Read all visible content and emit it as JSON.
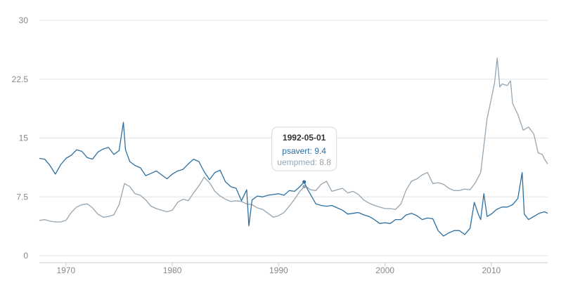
{
  "chart_data": {
    "type": "line",
    "title": "",
    "xlabel": "",
    "ylabel": "",
    "xlim": [
      1967.5,
      2015.3
    ],
    "ylim": [
      0,
      30
    ],
    "x_ticks": [
      {
        "value": 1970,
        "label": "1970"
      },
      {
        "value": 1980,
        "label": "1980"
      },
      {
        "value": 1990,
        "label": "1990"
      },
      {
        "value": 2000,
        "label": "2000"
      },
      {
        "value": 2010,
        "label": "2010"
      }
    ],
    "y_ticks": [
      {
        "value": 0,
        "label": "0"
      },
      {
        "value": 7.5,
        "label": "7.5"
      },
      {
        "value": 15,
        "label": "15"
      },
      {
        "value": 22.5,
        "label": "22.5"
      },
      {
        "value": 30,
        "label": "30"
      }
    ],
    "grid": true,
    "series": [
      {
        "name": "uempmed",
        "color": "#95a5b2",
        "points": [
          [
            1967.5,
            4.5
          ],
          [
            1968.0,
            4.6
          ],
          [
            1968.5,
            4.4
          ],
          [
            1969.0,
            4.3
          ],
          [
            1969.5,
            4.3
          ],
          [
            1970.0,
            4.5
          ],
          [
            1970.5,
            5.5
          ],
          [
            1971.0,
            6.2
          ],
          [
            1971.5,
            6.5
          ],
          [
            1972.0,
            6.6
          ],
          [
            1972.5,
            6.1
          ],
          [
            1973.0,
            5.3
          ],
          [
            1973.5,
            4.9
          ],
          [
            1974.0,
            5.0
          ],
          [
            1974.5,
            5.2
          ],
          [
            1975.0,
            6.5
          ],
          [
            1975.5,
            9.2
          ],
          [
            1976.0,
            8.8
          ],
          [
            1976.5,
            7.9
          ],
          [
            1977.0,
            7.7
          ],
          [
            1977.5,
            7.1
          ],
          [
            1978.0,
            6.3
          ],
          [
            1978.5,
            6.0
          ],
          [
            1979.0,
            5.8
          ],
          [
            1979.5,
            5.6
          ],
          [
            1980.0,
            5.8
          ],
          [
            1980.5,
            6.8
          ],
          [
            1981.0,
            7.2
          ],
          [
            1981.5,
            7.0
          ],
          [
            1982.0,
            8.0
          ],
          [
            1982.5,
            8.9
          ],
          [
            1983.0,
            10.0
          ],
          [
            1983.5,
            9.3
          ],
          [
            1984.0,
            8.2
          ],
          [
            1984.5,
            7.6
          ],
          [
            1985.0,
            7.2
          ],
          [
            1985.5,
            6.9
          ],
          [
            1986.0,
            7.0
          ],
          [
            1986.5,
            6.9
          ],
          [
            1987.0,
            6.6
          ],
          [
            1987.5,
            6.5
          ],
          [
            1988.0,
            6.1
          ],
          [
            1988.5,
            5.9
          ],
          [
            1989.0,
            5.4
          ],
          [
            1989.5,
            4.9
          ],
          [
            1990.0,
            5.1
          ],
          [
            1990.5,
            5.5
          ],
          [
            1991.0,
            6.3
          ],
          [
            1991.5,
            7.2
          ],
          [
            1992.0,
            8.2
          ],
          [
            1992.4,
            8.8
          ],
          [
            1992.5,
            8.9
          ],
          [
            1993.0,
            8.4
          ],
          [
            1993.5,
            8.3
          ],
          [
            1994.0,
            9.1
          ],
          [
            1994.5,
            9.5
          ],
          [
            1995.0,
            8.2
          ],
          [
            1995.5,
            8.4
          ],
          [
            1996.0,
            8.6
          ],
          [
            1996.5,
            8.0
          ],
          [
            1997.0,
            8.2
          ],
          [
            1997.5,
            7.8
          ],
          [
            1998.0,
            7.1
          ],
          [
            1998.5,
            6.7
          ],
          [
            1999.0,
            6.4
          ],
          [
            1999.5,
            6.2
          ],
          [
            2000.0,
            6.0
          ],
          [
            2000.5,
            6.0
          ],
          [
            2001.0,
            5.9
          ],
          [
            2001.5,
            6.6
          ],
          [
            2002.0,
            8.4
          ],
          [
            2002.5,
            9.5
          ],
          [
            2003.0,
            9.8
          ],
          [
            2003.5,
            10.3
          ],
          [
            2004.0,
            10.6
          ],
          [
            2004.5,
            9.2
          ],
          [
            2005.0,
            9.3
          ],
          [
            2005.5,
            9.1
          ],
          [
            2006.0,
            8.6
          ],
          [
            2006.5,
            8.3
          ],
          [
            2007.0,
            8.3
          ],
          [
            2007.5,
            8.5
          ],
          [
            2008.0,
            8.4
          ],
          [
            2008.5,
            9.3
          ],
          [
            2009.0,
            10.6
          ],
          [
            2009.3,
            14.0
          ],
          [
            2009.6,
            17.5
          ],
          [
            2010.0,
            20.0
          ],
          [
            2010.3,
            22.0
          ],
          [
            2010.55,
            25.2
          ],
          [
            2010.8,
            21.5
          ],
          [
            2011.0,
            21.9
          ],
          [
            2011.5,
            21.7
          ],
          [
            2011.8,
            22.3
          ],
          [
            2012.0,
            19.4
          ],
          [
            2012.5,
            18.0
          ],
          [
            2013.0,
            16.0
          ],
          [
            2013.5,
            16.4
          ],
          [
            2014.0,
            15.5
          ],
          [
            2014.4,
            13.1
          ],
          [
            2014.8,
            12.9
          ],
          [
            2015.0,
            12.3
          ],
          [
            2015.3,
            11.7
          ]
        ]
      },
      {
        "name": "psavert",
        "color": "#2c6fa0",
        "points": [
          [
            1967.5,
            12.4
          ],
          [
            1968.0,
            12.3
          ],
          [
            1968.5,
            11.5
          ],
          [
            1969.0,
            10.4
          ],
          [
            1969.5,
            11.6
          ],
          [
            1970.0,
            12.4
          ],
          [
            1970.5,
            12.8
          ],
          [
            1971.0,
            13.5
          ],
          [
            1971.5,
            13.3
          ],
          [
            1972.0,
            12.5
          ],
          [
            1972.5,
            12.3
          ],
          [
            1973.0,
            13.2
          ],
          [
            1973.5,
            13.6
          ],
          [
            1974.0,
            13.8
          ],
          [
            1974.5,
            12.9
          ],
          [
            1975.0,
            13.4
          ],
          [
            1975.4,
            17.0
          ],
          [
            1975.6,
            13.5
          ],
          [
            1976.0,
            12.0
          ],
          [
            1976.5,
            11.5
          ],
          [
            1977.0,
            11.2
          ],
          [
            1977.5,
            10.2
          ],
          [
            1978.0,
            10.5
          ],
          [
            1978.5,
            10.8
          ],
          [
            1979.0,
            10.3
          ],
          [
            1979.5,
            9.8
          ],
          [
            1980.0,
            10.4
          ],
          [
            1980.5,
            10.8
          ],
          [
            1981.0,
            11.0
          ],
          [
            1981.5,
            11.7
          ],
          [
            1982.0,
            12.3
          ],
          [
            1982.5,
            12.0
          ],
          [
            1983.0,
            10.7
          ],
          [
            1983.5,
            9.7
          ],
          [
            1984.0,
            10.6
          ],
          [
            1984.5,
            10.9
          ],
          [
            1985.0,
            9.4
          ],
          [
            1985.5,
            8.8
          ],
          [
            1986.0,
            8.6
          ],
          [
            1986.5,
            7.0
          ],
          [
            1987.0,
            8.4
          ],
          [
            1987.2,
            3.8
          ],
          [
            1987.5,
            7.1
          ],
          [
            1988.0,
            7.6
          ],
          [
            1988.5,
            7.5
          ],
          [
            1989.0,
            7.7
          ],
          [
            1989.5,
            7.8
          ],
          [
            1990.0,
            7.9
          ],
          [
            1990.5,
            7.7
          ],
          [
            1991.0,
            8.3
          ],
          [
            1991.5,
            8.2
          ],
          [
            1992.0,
            8.8
          ],
          [
            1992.4,
            9.4
          ],
          [
            1992.7,
            8.5
          ],
          [
            1993.0,
            7.8
          ],
          [
            1993.5,
            6.6
          ],
          [
            1994.0,
            6.4
          ],
          [
            1994.5,
            6.3
          ],
          [
            1995.0,
            6.4
          ],
          [
            1995.5,
            6.1
          ],
          [
            1996.0,
            5.8
          ],
          [
            1996.5,
            5.3
          ],
          [
            1997.0,
            5.4
          ],
          [
            1997.5,
            5.5
          ],
          [
            1998.0,
            5.2
          ],
          [
            1998.5,
            5.0
          ],
          [
            1999.0,
            4.6
          ],
          [
            1999.5,
            4.1
          ],
          [
            2000.0,
            4.2
          ],
          [
            2000.5,
            4.1
          ],
          [
            2001.0,
            4.6
          ],
          [
            2001.5,
            4.6
          ],
          [
            2002.0,
            5.2
          ],
          [
            2002.5,
            5.4
          ],
          [
            2003.0,
            5.1
          ],
          [
            2003.5,
            4.6
          ],
          [
            2004.0,
            4.8
          ],
          [
            2004.5,
            4.7
          ],
          [
            2005.0,
            3.2
          ],
          [
            2005.5,
            2.5
          ],
          [
            2006.0,
            2.9
          ],
          [
            2006.5,
            3.2
          ],
          [
            2007.0,
            3.2
          ],
          [
            2007.5,
            2.7
          ],
          [
            2008.0,
            3.5
          ],
          [
            2008.4,
            6.8
          ],
          [
            2008.8,
            5.2
          ],
          [
            2009.0,
            4.6
          ],
          [
            2009.3,
            7.9
          ],
          [
            2009.6,
            5.0
          ],
          [
            2010.0,
            5.3
          ],
          [
            2010.5,
            5.9
          ],
          [
            2011.0,
            6.2
          ],
          [
            2011.5,
            6.2
          ],
          [
            2012.0,
            6.5
          ],
          [
            2012.5,
            7.3
          ],
          [
            2012.9,
            10.6
          ],
          [
            2013.1,
            5.3
          ],
          [
            2013.5,
            4.6
          ],
          [
            2014.0,
            5.0
          ],
          [
            2014.5,
            5.4
          ],
          [
            2015.0,
            5.6
          ],
          [
            2015.3,
            5.4
          ]
        ]
      }
    ],
    "tooltip": {
      "date": "1992-05-01",
      "x_value": 1992.4,
      "lines": [
        {
          "label": "psavert: 9.4",
          "color": "#2c6fa0",
          "value": 9.4
        },
        {
          "label": "uempmed: 8.8",
          "color": "#95a5b2",
          "value": 8.8
        }
      ]
    }
  }
}
